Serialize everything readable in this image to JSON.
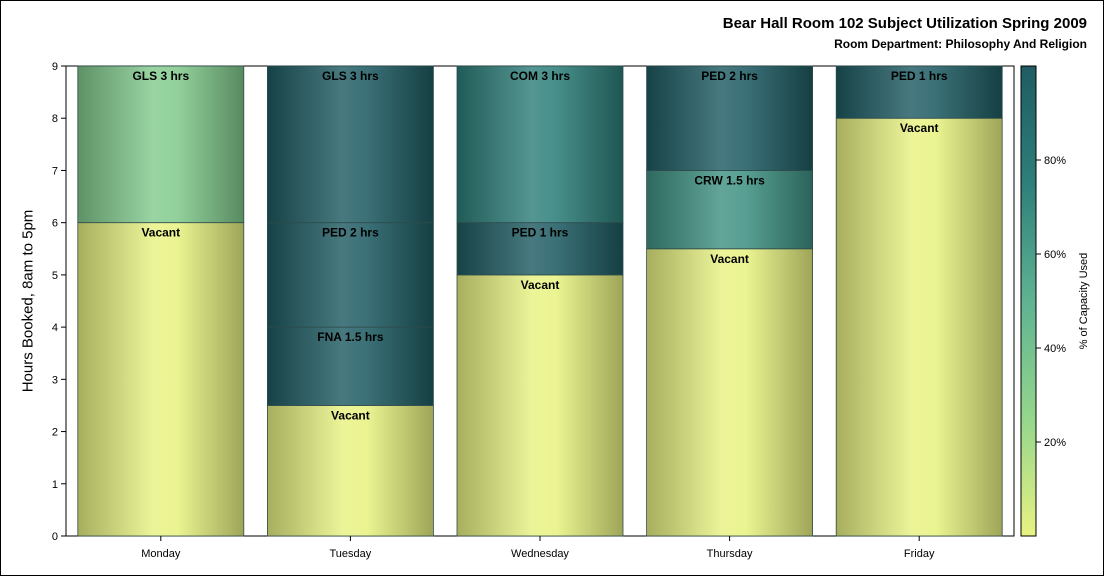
{
  "chart_data": {
    "type": "bar",
    "stacked": true,
    "title": "Bear Hall Room 102 Subject Utilization Spring 2009",
    "subtitle": "Room Department:  Philosophy And Religion",
    "xlabel": "",
    "ylabel": "Hours Booked, 8am to 5pm",
    "ylim": [
      0,
      9
    ],
    "yticks": [
      "0",
      "1",
      "2",
      "3",
      "4",
      "5",
      "6",
      "7",
      "8",
      "9"
    ],
    "grid": false,
    "categories": [
      "Monday",
      "Tuesday",
      "Wednesday",
      "Thursday",
      "Friday"
    ],
    "colorbar": {
      "label": "% of Capacity Used",
      "ticks": [
        {
          "value": 20,
          "label": "20%"
        },
        {
          "value": 40,
          "label": "40%"
        },
        {
          "value": 60,
          "label": "60%"
        },
        {
          "value": 80,
          "label": "80%"
        }
      ],
      "range": [
        0,
        100
      ],
      "colors": [
        "#e8f282",
        "#94d68c",
        "#5fb392",
        "#2e7f7a",
        "#1f5c63"
      ]
    },
    "stacks": [
      {
        "category": "Monday",
        "segments": [
          {
            "label": "Vacant",
            "hours": 6,
            "capacity": 0
          },
          {
            "label": "GLS 3 hrs",
            "hours": 3,
            "capacity": 33
          }
        ]
      },
      {
        "category": "Tuesday",
        "segments": [
          {
            "label": "Vacant",
            "hours": 2.5,
            "capacity": 0
          },
          {
            "label": "FNA 1.5 hrs",
            "hours": 1.5,
            "capacity": 100
          },
          {
            "label": "PED 2 hrs",
            "hours": 2,
            "capacity": 100
          },
          {
            "label": "GLS 3 hrs",
            "hours": 3,
            "capacity": 100
          }
        ]
      },
      {
        "category": "Wednesday",
        "segments": [
          {
            "label": "Vacant",
            "hours": 5,
            "capacity": 0
          },
          {
            "label": "PED 1 hrs",
            "hours": 1,
            "capacity": 100
          },
          {
            "label": "COM 3 hrs",
            "hours": 3,
            "capacity": 75
          }
        ]
      },
      {
        "category": "Thursday",
        "segments": [
          {
            "label": "Vacant",
            "hours": 5.5,
            "capacity": 0
          },
          {
            "label": "CRW 1.5 hrs",
            "hours": 1.5,
            "capacity": 66
          },
          {
            "label": "PED 2 hrs",
            "hours": 2,
            "capacity": 100
          }
        ]
      },
      {
        "category": "Friday",
        "segments": [
          {
            "label": "Vacant",
            "hours": 8,
            "capacity": 0
          },
          {
            "label": "PED 1 hrs",
            "hours": 1,
            "capacity": 100
          }
        ]
      }
    ]
  }
}
